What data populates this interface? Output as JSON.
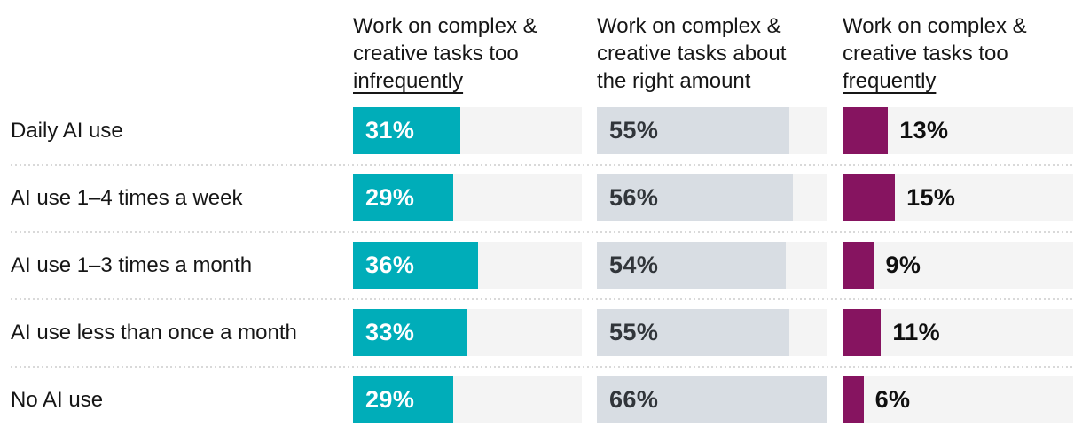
{
  "chart_data": {
    "type": "bar",
    "layout": "horizontal-grouped-small-multiples",
    "title": "",
    "categories": [
      "Daily AI use",
      "AI use 1–4 times a week",
      "AI use 1–3 times a month",
      "AI use less than once a month",
      "No AI use"
    ],
    "series": [
      {
        "name": "Work on complex & creative tasks too infrequently",
        "values": [
          31,
          29,
          36,
          33,
          29
        ],
        "color": "#00adb9",
        "value_label_color": "#ffffff",
        "value_label_position": "inside"
      },
      {
        "name": "Work on complex & creative tasks about the right amount",
        "values": [
          55,
          56,
          54,
          55,
          66
        ],
        "color": "#d8dde3",
        "value_label_color": "#31353a",
        "value_label_position": "inside"
      },
      {
        "name": "Work on complex & creative tasks too frequently",
        "values": [
          13,
          15,
          9,
          11,
          6
        ],
        "color": "#861460",
        "value_label_color": "#0f0f0f",
        "value_label_position": "outside"
      }
    ],
    "value_suffix": "%",
    "scale_max": 66,
    "grid": false,
    "legend_position": "column-headers",
    "column_headers": [
      {
        "lines": [
          "Work on complex &",
          "creative tasks too"
        ],
        "underlined_line": "infrequently"
      },
      {
        "lines": [
          "Work on complex &",
          "creative tasks about",
          "the right amount"
        ],
        "underlined_line": ""
      },
      {
        "lines": [
          "Work on complex &",
          "creative tasks too"
        ],
        "underlined_line": "frequently"
      }
    ]
  },
  "colors": {
    "background": "#ffffff",
    "text": "#161616",
    "track": "#f4f4f4",
    "separator": "#d9d9d9",
    "teal": "#00adb9",
    "slate": "#d8dde3",
    "magenta": "#861460"
  }
}
